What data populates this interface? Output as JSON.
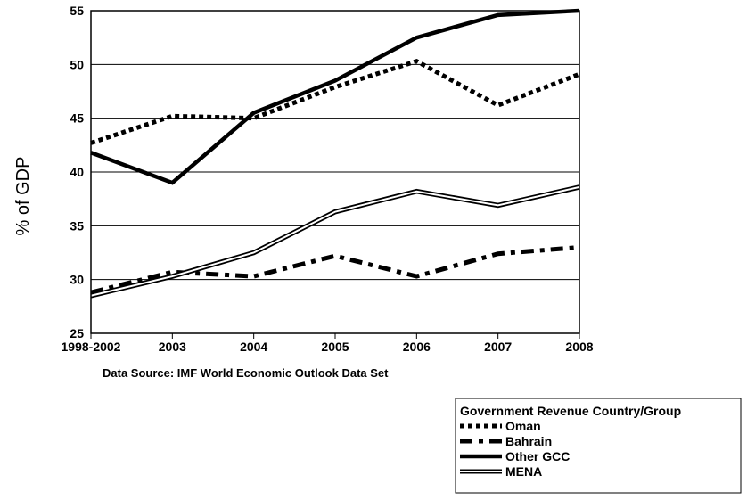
{
  "chart_data": {
    "type": "line",
    "title": "",
    "xlabel": "",
    "ylabel": "% of GDP",
    "source_note": "Data Source: IMF World Economic Outlook Data Set",
    "categories": [
      "1998-2002",
      "2003",
      "2004",
      "2005",
      "2006",
      "2007",
      "2008"
    ],
    "yticks": [
      25,
      30,
      35,
      40,
      45,
      50,
      55
    ],
    "ylim": [
      25,
      55
    ],
    "grid": true,
    "legend_position": "bottom-right",
    "legend_title": "Government Revenue Country/Group",
    "series": [
      {
        "name": "Oman",
        "style": "dotted",
        "color": "#000000",
        "values": [
          42.7,
          45.2,
          45.0,
          47.9,
          50.3,
          46.2,
          49.1
        ]
      },
      {
        "name": "Bahrain",
        "style": "dashdot",
        "color": "#000000",
        "values": [
          28.8,
          30.7,
          30.3,
          32.2,
          30.3,
          32.4,
          33.0
        ]
      },
      {
        "name": "Other GCC",
        "style": "solid",
        "color": "#000000",
        "values": [
          41.8,
          39.0,
          45.5,
          48.5,
          52.5,
          54.6,
          55.0
        ]
      },
      {
        "name": "MENA",
        "style": "double",
        "color": "#000000",
        "values": [
          28.5,
          30.3,
          32.5,
          36.3,
          38.2,
          36.9,
          38.6
        ]
      }
    ]
  }
}
